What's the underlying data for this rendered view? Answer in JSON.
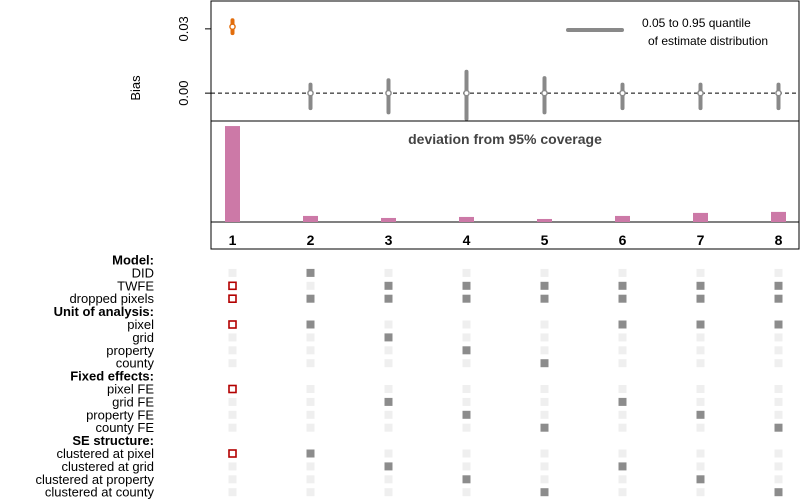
{
  "chart_data": {
    "type": "specification-curve",
    "bias_panel": {
      "ylabel": "Bias",
      "yticks": [
        0.0,
        0.03
      ],
      "ytick_labels": [
        "0.00",
        "0.03"
      ],
      "ylim": [
        -0.013,
        0.043
      ],
      "reference_line": 0,
      "specifications": [
        1,
        2,
        3,
        4,
        5,
        6,
        7,
        8
      ],
      "point": [
        0.031,
        0.0,
        0.0,
        0.0,
        0.0,
        0.0,
        0.0,
        0.0
      ],
      "q05": [
        0.028,
        -0.007,
        -0.009,
        -0.012,
        -0.009,
        -0.007,
        -0.007,
        -0.007
      ],
      "q95": [
        0.034,
        0.004,
        0.006,
        0.01,
        0.007,
        0.004,
        0.004,
        0.004
      ],
      "highlight": [
        1
      ],
      "highlight_color": "#e26d0c",
      "default_color": "#898989",
      "legend_line1": "0.05 to 0.95 quantile",
      "legend_line2": "of estimate distribution"
    },
    "coverage_panel": {
      "title": "deviation from 95% coverage",
      "values": [
        0.95,
        0.06,
        0.04,
        0.05,
        0.03,
        0.06,
        0.09,
        0.1
      ],
      "ylim": [
        0,
        1.0
      ],
      "color": "#cc79a7"
    },
    "x_tick_labels": [
      "1",
      "2",
      "3",
      "4",
      "5",
      "6",
      "7",
      "8"
    ],
    "matrix": {
      "rows": [
        {
          "label": "Model:",
          "group": true
        },
        {
          "label": "DID",
          "values": [
            0,
            1,
            0,
            0,
            0,
            0,
            0,
            0
          ]
        },
        {
          "label": "TWFE",
          "values": [
            1,
            0,
            1,
            1,
            1,
            1,
            1,
            1
          ]
        },
        {
          "label": "dropped pixels",
          "values": [
            1,
            1,
            1,
            1,
            1,
            1,
            1,
            1
          ]
        },
        {
          "label": "Unit of analysis:",
          "group": true
        },
        {
          "label": "pixel",
          "values": [
            1,
            1,
            0,
            0,
            0,
            1,
            1,
            1
          ]
        },
        {
          "label": "grid",
          "values": [
            0,
            0,
            1,
            0,
            0,
            0,
            0,
            0
          ]
        },
        {
          "label": "property",
          "values": [
            0,
            0,
            0,
            1,
            0,
            0,
            0,
            0
          ]
        },
        {
          "label": "county",
          "values": [
            0,
            0,
            0,
            0,
            1,
            0,
            0,
            0
          ]
        },
        {
          "label": "Fixed effects:",
          "group": true
        },
        {
          "label": "pixel FE",
          "values": [
            1,
            0,
            0,
            0,
            0,
            0,
            0,
            0
          ]
        },
        {
          "label": "grid FE",
          "values": [
            0,
            0,
            1,
            0,
            0,
            1,
            0,
            0
          ]
        },
        {
          "label": "property FE",
          "values": [
            0,
            0,
            0,
            1,
            0,
            0,
            1,
            0
          ]
        },
        {
          "label": "county FE",
          "values": [
            0,
            0,
            0,
            0,
            1,
            0,
            0,
            1
          ]
        },
        {
          "label": "SE structure:",
          "group": true
        },
        {
          "label": "clustered at pixel",
          "values": [
            1,
            1,
            0,
            0,
            0,
            0,
            0,
            0
          ]
        },
        {
          "label": "clustered at grid",
          "values": [
            0,
            0,
            1,
            0,
            0,
            1,
            0,
            0
          ]
        },
        {
          "label": "clustered at property",
          "values": [
            0,
            0,
            0,
            1,
            0,
            0,
            1,
            0
          ]
        },
        {
          "label": "clustered at county",
          "values": [
            0,
            0,
            0,
            0,
            1,
            0,
            0,
            1
          ]
        }
      ],
      "on_color": "#8c8c8c",
      "off_color": "#efefef",
      "highlight_color": "#b30000"
    }
  }
}
